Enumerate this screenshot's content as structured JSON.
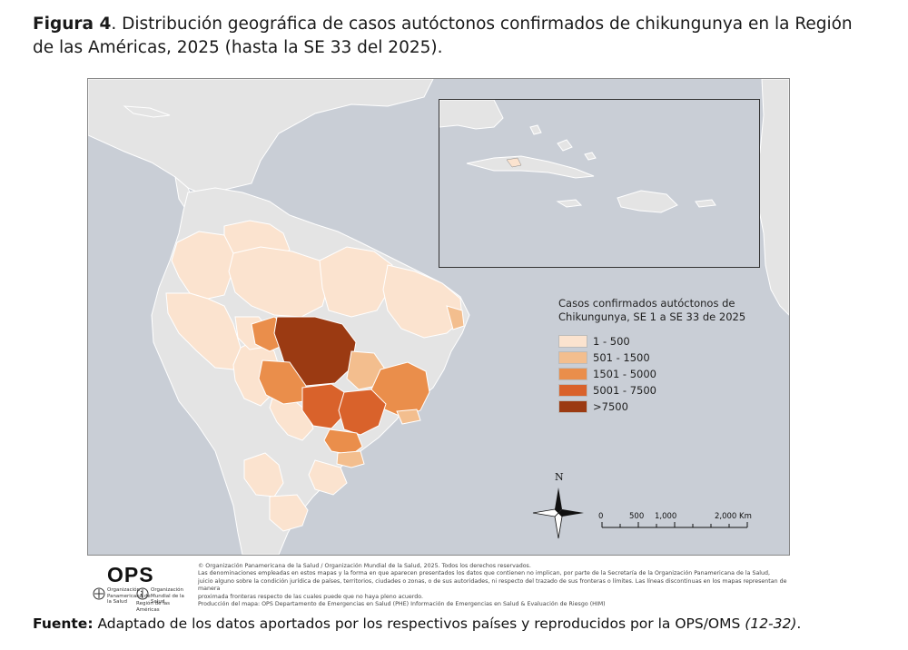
{
  "caption": {
    "label": "Figura 4",
    "text": ". Distribución geográfica de casos autóctonos confirmados de chikungunya en la Región de las Américas, 2025 (hasta la SE 33 del 2025)."
  },
  "map": {
    "legend": {
      "title": "Casos confirmados autóctonos de Chikungunya, SE 1 a SE 33 de 2025",
      "items": [
        {
          "label": "1 - 500",
          "color": "#fbe3cf"
        },
        {
          "label": "501 - 1500",
          "color": "#f3be8e"
        },
        {
          "label": "1501 - 5000",
          "color": "#ea8e4b"
        },
        {
          "label": "5001 - 7500",
          "color": "#d9622b"
        },
        {
          "label": ">7500",
          "color": "#9b3a12"
        }
      ]
    },
    "north_label": "N",
    "scale_labels": [
      "0",
      "500",
      "1,000",
      "2,000 Km"
    ],
    "colors": {
      "ocean": "#c9ced6",
      "land": "#e4e4e4",
      "border": "#ffffff"
    }
  },
  "footer": {
    "logo_text": "OPS",
    "logo_sub_1": "Organización Panamericana de la Salud",
    "logo_sub_2": "Organización Mundial de la Salud",
    "logo_sub_3": "Región de las Américas",
    "disclaimer": [
      "©  Organización Panamericana de la Salud / Organización Mundial de la Salud, 2025. Todos los derechos reservados.",
      "Las denominaciones empleadas en estos mapas y la forma en que aparecen presentados los datos que contienen no implican, por parte de la Secretaría de la Organización Panamericana de la Salud,",
      "juicio alguno sobre la condición jurídica de países,  territorios, ciudades o zonas, o de sus autoridades, ni respecto del trazado de sus fronteras o límites.  Las líneas discontinuas en los mapas representan de manera",
      "proximada fronteras respecto de las cuales puede que no haya pleno acuerdo.",
      "Producción del mapa: OPS Departamento de Emergencias en Salud (PHE) Información de Emergencias en Salud & Evaluación de Riesgo (HIM)"
    ]
  },
  "source": {
    "label": "Fuente:",
    "text": " Adaptado de los datos aportados por los respectivos países y reproducidos por la OPS/OMS ",
    "refs": "(12-32)",
    "end": "."
  }
}
